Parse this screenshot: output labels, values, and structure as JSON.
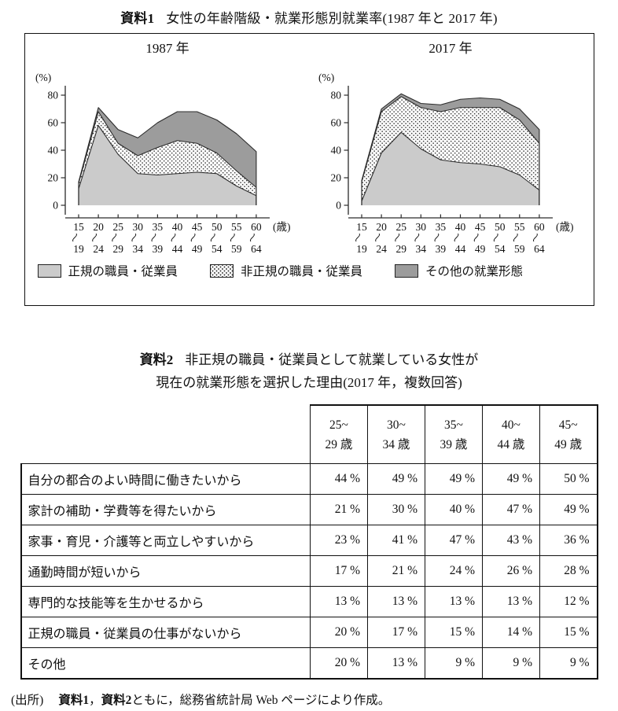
{
  "page": {
    "shiryo1_label": "資料1",
    "shiryo1_title": "女性の年齢階級・就業形態別就業率(1987 年と 2017 年)",
    "shiryo2_label": "資料2",
    "shiryo2_title_line1": "非正規の職員・従業員として就業している女性が",
    "shiryo2_title_line2": "現在の就業形態を選択した理由(2017 年，複数回答)",
    "source_prefix": "(出所)",
    "source_bold1": "資料1",
    "source_sep": "，",
    "source_bold2": "資料2",
    "source_rest": "ともに，総務省統計局 Web ページにより作成。"
  },
  "chart_data": [
    {
      "type": "area",
      "stacked": true,
      "title": "1987 年",
      "ylabel": "(%)",
      "xlabel_suffix": "(歳)",
      "ylim": [
        0,
        80
      ],
      "yticks": [
        0,
        20,
        40,
        60,
        80
      ],
      "grid": false,
      "categories": [
        [
          "15",
          "19"
        ],
        [
          "20",
          "24"
        ],
        [
          "25",
          "29"
        ],
        [
          "30",
          "34"
        ],
        [
          "35",
          "39"
        ],
        [
          "40",
          "44"
        ],
        [
          "45",
          "49"
        ],
        [
          "50",
          "54"
        ],
        [
          "55",
          "59"
        ],
        [
          "60",
          "64"
        ]
      ],
      "series": [
        {
          "name": "正規の職員・従業員",
          "values": [
            12,
            58,
            37,
            23,
            22,
            23,
            24,
            23,
            14,
            7
          ]
        },
        {
          "name": "非正規の職員・従業員",
          "values": [
            4,
            10,
            8,
            13,
            20,
            24,
            21,
            15,
            11,
            6
          ]
        },
        {
          "name": "その他の就業形態",
          "values": [
            1,
            3,
            10,
            13,
            18,
            21,
            23,
            24,
            27,
            26
          ]
        }
      ]
    },
    {
      "type": "area",
      "stacked": true,
      "title": "2017 年",
      "ylabel": "(%)",
      "xlabel_suffix": "(歳)",
      "ylim": [
        0,
        80
      ],
      "yticks": [
        0,
        20,
        40,
        60,
        80
      ],
      "grid": false,
      "categories": [
        [
          "15",
          "19"
        ],
        [
          "20",
          "24"
        ],
        [
          "25",
          "29"
        ],
        [
          "30",
          "34"
        ],
        [
          "35",
          "39"
        ],
        [
          "40",
          "44"
        ],
        [
          "45",
          "49"
        ],
        [
          "50",
          "54"
        ],
        [
          "55",
          "59"
        ],
        [
          "60",
          "64"
        ]
      ],
      "series": [
        {
          "name": "正規の職員・従業員",
          "values": [
            3,
            38,
            53,
            41,
            33,
            31,
            30,
            28,
            22,
            11
          ]
        },
        {
          "name": "非正規の職員・従業員",
          "values": [
            14,
            30,
            26,
            30,
            35,
            40,
            41,
            43,
            40,
            34
          ]
        },
        {
          "name": "その他の就業形態",
          "values": [
            1,
            2,
            2,
            3,
            5,
            6,
            7,
            6,
            8,
            10
          ]
        }
      ]
    }
  ],
  "legend": {
    "items": [
      {
        "label": "正規の職員・従業員",
        "swatch": "regular",
        "color": "#cbcbcb"
      },
      {
        "label": "非正規の職員・従業員",
        "swatch": "dots",
        "color": "#ffffff"
      },
      {
        "label": "その他の就業形態",
        "swatch": "other",
        "color": "#9c9c9c"
      }
    ]
  },
  "table": {
    "unit": "%",
    "col_headers": [
      {
        "line1": "25~",
        "line2": "29 歳"
      },
      {
        "line1": "30~",
        "line2": "34 歳"
      },
      {
        "line1": "35~",
        "line2": "39 歳"
      },
      {
        "line1": "40~",
        "line2": "44 歳"
      },
      {
        "line1": "45~",
        "line2": "49 歳"
      }
    ],
    "rows": [
      {
        "label": "自分の都合のよい時間に働きたいから",
        "values": [
          44,
          49,
          49,
          49,
          50
        ]
      },
      {
        "label": "家計の補助・学費等を得たいから",
        "values": [
          21,
          30,
          40,
          47,
          49
        ]
      },
      {
        "label": "家事・育児・介護等と両立しやすいから",
        "values": [
          23,
          41,
          47,
          43,
          36
        ]
      },
      {
        "label": "通勤時間が短いから",
        "values": [
          17,
          21,
          24,
          26,
          28
        ]
      },
      {
        "label": "専門的な技能等を生かせるから",
        "values": [
          13,
          13,
          13,
          13,
          12
        ]
      },
      {
        "label": "正規の職員・従業員の仕事がないから",
        "values": [
          20,
          17,
          15,
          14,
          15
        ]
      },
      {
        "label": "その他",
        "values": [
          20,
          13,
          9,
          9,
          9
        ]
      }
    ]
  },
  "style_colors": {
    "regular_fill": "#cbcbcb",
    "other_fill": "#9c9c9c",
    "dot_color": "#3f3f3f",
    "line_color": "#2b2b2b"
  }
}
